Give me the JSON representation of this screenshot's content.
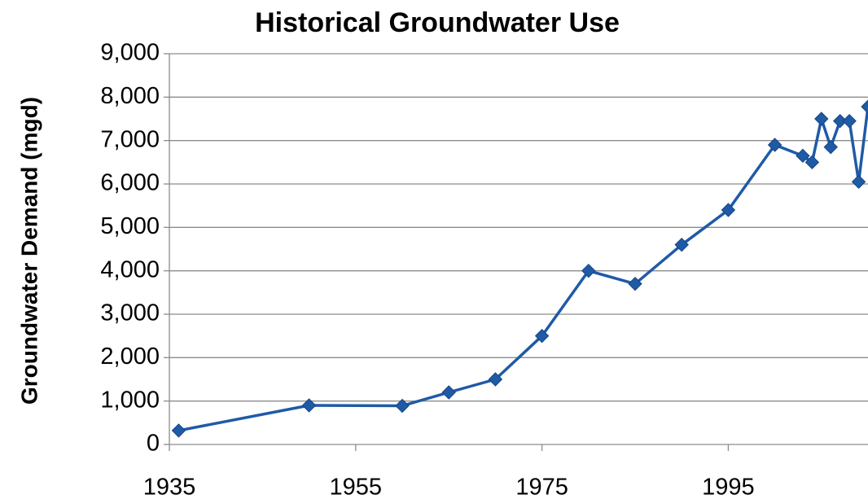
{
  "chart_data": {
    "type": "line",
    "title": "Historical Groundwater Use",
    "y_label": "Groundwater Demand (mgd)",
    "x": [
      1936,
      1950,
      1960,
      1965,
      1970,
      1975,
      1980,
      1985,
      1990,
      1995,
      2000,
      2003,
      2004,
      2005,
      2006,
      2007,
      2008,
      2009,
      2010
    ],
    "series": [
      {
        "name": "Groundwater Demand",
        "color": "#1f5aa6",
        "values": [
          320,
          900,
          890,
          1200,
          1500,
          2500,
          4000,
          3700,
          4600,
          5400,
          6900,
          6650,
          6500,
          7500,
          6850,
          7450,
          7450,
          6050,
          7780
        ]
      }
    ],
    "xlim": [
      1935,
      2010
    ],
    "xticks": [
      1935,
      1955,
      1975,
      1995
    ],
    "ylim": [
      0,
      9000
    ],
    "yticks": [
      0,
      {
        "value": 1000,
        "label": "1,000"
      },
      {
        "value": 2000,
        "label": "2,000"
      },
      {
        "value": 3000,
        "label": "3,000"
      },
      {
        "value": 4000,
        "label": "4,000"
      },
      {
        "value": 5000,
        "label": "5,000"
      },
      {
        "value": 6000,
        "label": "6,000"
      },
      {
        "value": 7000,
        "label": "7,000"
      },
      {
        "value": 8000,
        "label": "8,000"
      },
      {
        "value": 9000,
        "label": "9,000"
      }
    ],
    "grid": true
  }
}
